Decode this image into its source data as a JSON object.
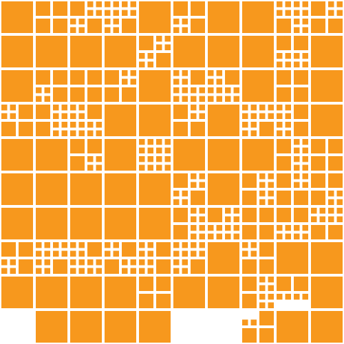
{
  "colors": {
    "background": "#ffffff",
    "tile": "#f7981d"
  },
  "mosaic": {
    "tile_style": "square",
    "tile_color_name": "orange"
  }
}
